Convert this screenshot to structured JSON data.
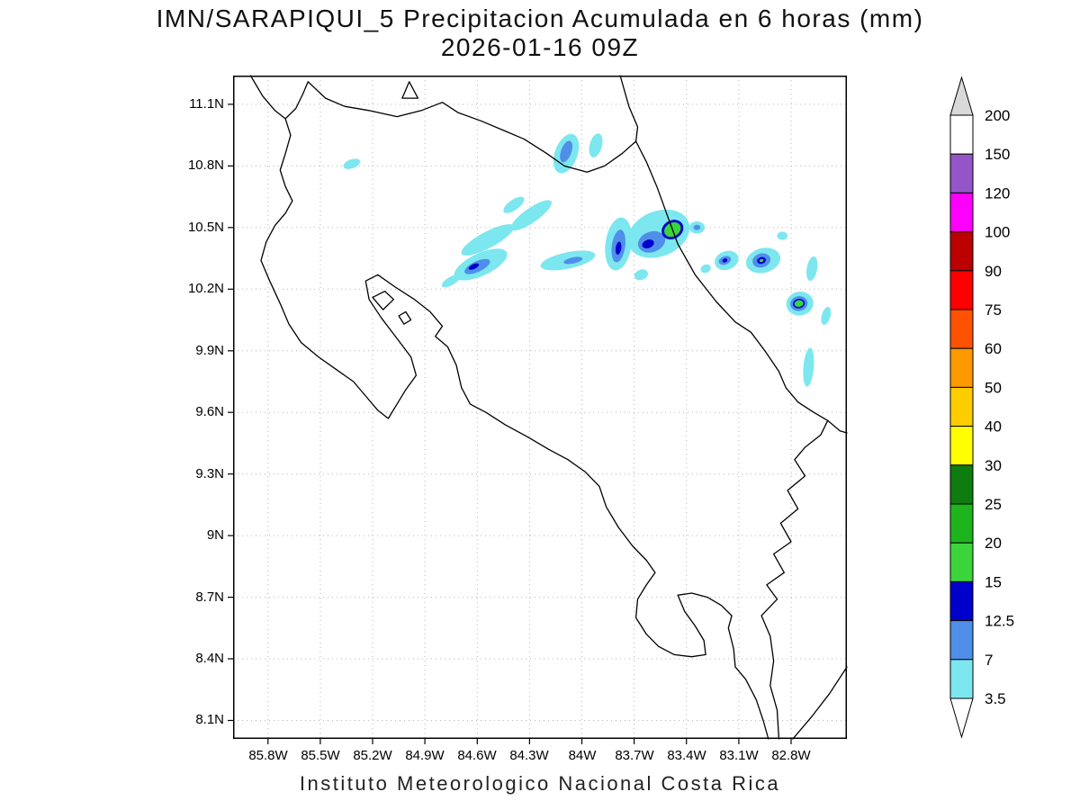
{
  "title": {
    "line1": "IMN/SARAPIQUI_5 Precipitacion Acumulada en 6 horas (mm)",
    "line2": "2026-01-16 09Z"
  },
  "footer": "Instituto Meteorologico Nacional Costa Rica",
  "chart_data": {
    "type": "heatmap",
    "subtype": "filled-contour precipitation map over Costa Rica coastline",
    "title": "IMN/SARAPIQUI_5 Precipitacion Acumulada en 6 horas (mm)",
    "subtitle": "2026-01-16 09Z",
    "caption": "Instituto Meteorologico Nacional Costa Rica",
    "grid": true,
    "legend_position": "right",
    "lon_range_w": [
      86.0,
      82.48
    ],
    "lat_range_n": [
      8.01,
      11.24
    ],
    "x_axis": {
      "label": "",
      "ticks": [
        "85.8W",
        "85.5W",
        "85.2W",
        "84.9W",
        "84.6W",
        "84.3W",
        "84W",
        "83.7W",
        "83.4W",
        "83.1W",
        "82.8W"
      ],
      "values": [
        85.8,
        85.5,
        85.2,
        84.9,
        84.6,
        84.3,
        84.0,
        83.7,
        83.4,
        83.1,
        82.8
      ]
    },
    "y_axis": {
      "label": "",
      "ticks": [
        "11.1N",
        "10.8N",
        "10.5N",
        "10.2N",
        "9.9N",
        "9.6N",
        "9.3N",
        "9N",
        "8.7N",
        "8.4N",
        "8.1N"
      ],
      "values": [
        11.1,
        10.8,
        10.5,
        10.2,
        9.9,
        9.6,
        9.3,
        9.0,
        8.7,
        8.4,
        8.1
      ]
    },
    "colorbar": {
      "units": "mm",
      "labels": [
        "200",
        "150",
        "120",
        "100",
        "90",
        "75",
        "60",
        "50",
        "40",
        "30",
        "25",
        "20",
        "15",
        "12.5",
        "7",
        "3.5"
      ],
      "levels_mm": [
        3.5,
        7,
        12.5,
        15,
        20,
        25,
        30,
        40,
        50,
        60,
        75,
        90,
        100,
        120,
        150,
        200
      ],
      "segment_colors": [
        "#d9d9d9",
        "#ffffff",
        "#9355c8",
        "#ff00ff",
        "#bc0000",
        "#ff0000",
        "#ff5200",
        "#ff9900",
        "#ffcc00",
        "#ffff00",
        "#0e7c0e",
        "#1eb41e",
        "#3bd53b",
        "#0000cd",
        "#4f8fea",
        "#7ce7ef",
        "#ffffff"
      ]
    },
    "precip_colors": {
      "1": "#7ce7ef",
      "2": "#4f8fea",
      "3": "#0000cd",
      "4": "#3bd53b"
    },
    "precip_cells_format": "[lon_W, lat_N, rx_deg, ry_deg, rotation_deg, color_level]",
    "precip_cells": [
      [
        85.32,
        10.81,
        0.05,
        0.022,
        -20,
        1
      ],
      [
        84.39,
        10.61,
        0.07,
        0.025,
        -35,
        1
      ],
      [
        84.29,
        10.56,
        0.14,
        0.035,
        -35,
        1
      ],
      [
        84.09,
        10.86,
        0.065,
        0.1,
        20,
        1
      ],
      [
        84.09,
        10.87,
        0.03,
        0.055,
        20,
        2
      ],
      [
        83.92,
        10.9,
        0.035,
        0.06,
        15,
        1
      ],
      [
        84.54,
        10.44,
        0.17,
        0.04,
        -28,
        1
      ],
      [
        84.58,
        10.32,
        0.165,
        0.055,
        -25,
        1
      ],
      [
        84.6,
        10.31,
        0.08,
        0.026,
        -25,
        2
      ],
      [
        84.62,
        10.31,
        0.032,
        0.012,
        -25,
        3
      ],
      [
        84.75,
        10.24,
        0.06,
        0.02,
        -30,
        1
      ],
      [
        84.08,
        10.34,
        0.16,
        0.04,
        -12,
        1
      ],
      [
        84.05,
        10.34,
        0.055,
        0.015,
        -12,
        2
      ],
      [
        83.79,
        10.42,
        0.075,
        0.13,
        8,
        1
      ],
      [
        83.79,
        10.41,
        0.038,
        0.08,
        8,
        2
      ],
      [
        83.79,
        10.4,
        0.016,
        0.032,
        8,
        3
      ],
      [
        83.66,
        10.27,
        0.04,
        0.025,
        -20,
        1
      ],
      [
        83.56,
        10.47,
        0.185,
        0.11,
        -22,
        1
      ],
      [
        83.6,
        10.43,
        0.08,
        0.05,
        -20,
        2
      ],
      [
        83.62,
        10.42,
        0.035,
        0.02,
        -20,
        3
      ],
      [
        83.48,
        10.49,
        0.065,
        0.045,
        -30,
        3
      ],
      [
        83.48,
        10.49,
        0.05,
        0.033,
        -30,
        4
      ],
      [
        83.34,
        10.5,
        0.045,
        0.03,
        0,
        1
      ],
      [
        83.34,
        10.5,
        0.02,
        0.013,
        0,
        2
      ],
      [
        83.29,
        10.3,
        0.03,
        0.02,
        -20,
        1
      ],
      [
        83.17,
        10.34,
        0.07,
        0.045,
        -20,
        1
      ],
      [
        83.18,
        10.34,
        0.036,
        0.02,
        -20,
        2
      ],
      [
        83.18,
        10.34,
        0.015,
        0.009,
        -20,
        3
      ],
      [
        82.96,
        10.34,
        0.1,
        0.06,
        -15,
        1
      ],
      [
        82.97,
        10.34,
        0.052,
        0.034,
        -15,
        2
      ],
      [
        82.97,
        10.34,
        0.026,
        0.016,
        -15,
        3
      ],
      [
        82.97,
        10.34,
        0.012,
        0.007,
        -15,
        4
      ],
      [
        82.85,
        10.46,
        0.03,
        0.02,
        0,
        1
      ],
      [
        82.68,
        10.3,
        0.03,
        0.06,
        10,
        1
      ],
      [
        82.75,
        10.13,
        0.078,
        0.058,
        -10,
        1
      ],
      [
        82.755,
        10.13,
        0.05,
        0.036,
        -10,
        2
      ],
      [
        82.755,
        10.13,
        0.034,
        0.023,
        -10,
        3
      ],
      [
        82.755,
        10.13,
        0.026,
        0.016,
        -10,
        4
      ],
      [
        82.6,
        10.07,
        0.025,
        0.045,
        15,
        1
      ],
      [
        82.7,
        9.82,
        0.03,
        0.095,
        5,
        1
      ]
    ],
    "coastlines": [
      {
        "name": "costa-rica-mainland",
        "closed": false,
        "points": [
          [
            82.93,
            8.01
          ],
          [
            82.96,
            8.1
          ],
          [
            83.0,
            8.2
          ],
          [
            83.06,
            8.3
          ],
          [
            83.12,
            8.36
          ],
          [
            83.13,
            8.45
          ],
          [
            83.16,
            8.55
          ],
          [
            83.14,
            8.61
          ],
          [
            83.2,
            8.66
          ],
          [
            83.28,
            8.7
          ],
          [
            83.37,
            8.72
          ],
          [
            83.45,
            8.71
          ],
          [
            83.41,
            8.63
          ],
          [
            83.35,
            8.56
          ],
          [
            83.3,
            8.49
          ],
          [
            83.29,
            8.42
          ],
          [
            83.37,
            8.41
          ],
          [
            83.47,
            8.42
          ],
          [
            83.56,
            8.46
          ],
          [
            83.63,
            8.52
          ],
          [
            83.69,
            8.6
          ],
          [
            83.68,
            8.69
          ],
          [
            83.63,
            8.76
          ],
          [
            83.58,
            8.82
          ],
          [
            83.63,
            8.88
          ],
          [
            83.71,
            8.95
          ],
          [
            83.79,
            9.04
          ],
          [
            83.86,
            9.14
          ],
          [
            83.9,
            9.24
          ],
          [
            83.98,
            9.31
          ],
          [
            84.08,
            9.37
          ],
          [
            84.19,
            9.42
          ],
          [
            84.31,
            9.48
          ],
          [
            84.44,
            9.54
          ],
          [
            84.55,
            9.6
          ],
          [
            84.64,
            9.64
          ],
          [
            84.69,
            9.72
          ],
          [
            84.72,
            9.83
          ],
          [
            84.77,
            9.92
          ],
          [
            84.84,
            9.97
          ],
          [
            84.8,
            10.02
          ],
          [
            84.87,
            10.09
          ],
          [
            84.96,
            10.15
          ],
          [
            85.07,
            10.21
          ],
          [
            85.17,
            10.27
          ],
          [
            85.24,
            10.24
          ],
          [
            85.22,
            10.15
          ],
          [
            85.15,
            10.06
          ],
          [
            85.06,
            9.96
          ],
          [
            84.98,
            9.87
          ],
          [
            84.95,
            9.78
          ],
          [
            85.01,
            9.71
          ],
          [
            85.06,
            9.64
          ],
          [
            85.11,
            9.57
          ],
          [
            85.17,
            9.61
          ],
          [
            85.24,
            9.68
          ],
          [
            85.31,
            9.75
          ],
          [
            85.41,
            9.81
          ],
          [
            85.51,
            9.87
          ],
          [
            85.61,
            9.94
          ],
          [
            85.68,
            10.03
          ],
          [
            85.73,
            10.13
          ],
          [
            85.79,
            10.24
          ],
          [
            85.84,
            10.34
          ],
          [
            85.81,
            10.43
          ],
          [
            85.76,
            10.51
          ],
          [
            85.7,
            10.57
          ],
          [
            85.66,
            10.63
          ],
          [
            85.7,
            10.7
          ],
          [
            85.73,
            10.78
          ],
          [
            85.7,
            10.86
          ],
          [
            85.67,
            10.95
          ],
          [
            85.7,
            11.03
          ],
          [
            85.64,
            11.08
          ],
          [
            85.6,
            11.15
          ],
          [
            85.57,
            11.21
          ],
          [
            85.47,
            11.13
          ],
          [
            85.36,
            11.09
          ],
          [
            85.22,
            11.07
          ],
          [
            85.06,
            11.04
          ],
          [
            84.92,
            11.07
          ],
          [
            84.8,
            11.11
          ],
          [
            84.71,
            11.06
          ],
          [
            84.58,
            11.02
          ],
          [
            84.44,
            10.97
          ],
          [
            84.33,
            10.93
          ],
          [
            84.2,
            10.86
          ],
          [
            84.1,
            10.8
          ],
          [
            83.97,
            10.77
          ],
          [
            83.87,
            10.8
          ],
          [
            83.77,
            10.86
          ],
          [
            83.69,
            10.92
          ],
          [
            83.63,
            10.82
          ],
          [
            83.57,
            10.7
          ],
          [
            83.51,
            10.56
          ],
          [
            83.45,
            10.42
          ],
          [
            83.35,
            10.27
          ],
          [
            83.23,
            10.14
          ],
          [
            83.12,
            10.04
          ],
          [
            83.03,
            9.99
          ],
          [
            82.95,
            9.9
          ],
          [
            82.87,
            9.8
          ],
          [
            82.83,
            9.72
          ],
          [
            82.76,
            9.65
          ],
          [
            82.67,
            9.6
          ],
          [
            82.59,
            9.56
          ],
          [
            82.63,
            9.49
          ],
          [
            82.72,
            9.43
          ],
          [
            82.78,
            9.37
          ],
          [
            82.72,
            9.29
          ],
          [
            82.82,
            9.22
          ],
          [
            82.76,
            9.13
          ],
          [
            82.86,
            9.06
          ],
          [
            82.8,
            8.97
          ],
          [
            82.9,
            8.91
          ],
          [
            82.84,
            8.82
          ],
          [
            82.94,
            8.76
          ],
          [
            82.88,
            8.69
          ],
          [
            82.97,
            8.61
          ],
          [
            82.92,
            8.51
          ],
          [
            82.9,
            8.39
          ],
          [
            82.92,
            8.27
          ],
          [
            82.88,
            8.15
          ],
          [
            82.87,
            8.01
          ]
        ]
      },
      {
        "name": "nicaragua-pacific-coast",
        "closed": false,
        "points": [
          [
            85.9,
            11.24
          ],
          [
            85.83,
            11.14
          ],
          [
            85.76,
            11.07
          ],
          [
            85.7,
            11.03
          ]
        ]
      },
      {
        "name": "nicaragua-caribbean-coast",
        "closed": false,
        "points": [
          [
            83.78,
            11.24
          ],
          [
            83.73,
            11.09
          ],
          [
            83.68,
            10.99
          ],
          [
            83.69,
            10.92
          ]
        ]
      },
      {
        "name": "panama-caribbean-coast",
        "closed": false,
        "points": [
          [
            82.59,
            9.56
          ],
          [
            82.52,
            9.51
          ],
          [
            82.48,
            9.5
          ]
        ]
      },
      {
        "name": "panama-pacific-coast",
        "closed": false,
        "points": [
          [
            82.48,
            8.36
          ],
          [
            82.58,
            8.23
          ],
          [
            82.68,
            8.12
          ],
          [
            82.77,
            8.03
          ],
          [
            82.79,
            8.01
          ]
        ]
      },
      {
        "name": "lake-island",
        "closed": true,
        "points": [
          [
            84.99,
            11.21
          ],
          [
            84.94,
            11.13
          ],
          [
            85.03,
            11.13
          ]
        ]
      },
      {
        "name": "gulf-island-chira",
        "closed": true,
        "points": [
          [
            85.2,
            10.16
          ],
          [
            85.13,
            10.19
          ],
          [
            85.08,
            10.15
          ],
          [
            85.14,
            10.1
          ]
        ]
      },
      {
        "name": "gulf-island-small",
        "closed": true,
        "points": [
          [
            85.05,
            10.07
          ],
          [
            85.01,
            10.09
          ],
          [
            84.98,
            10.05
          ],
          [
            85.02,
            10.03
          ]
        ]
      }
    ]
  }
}
